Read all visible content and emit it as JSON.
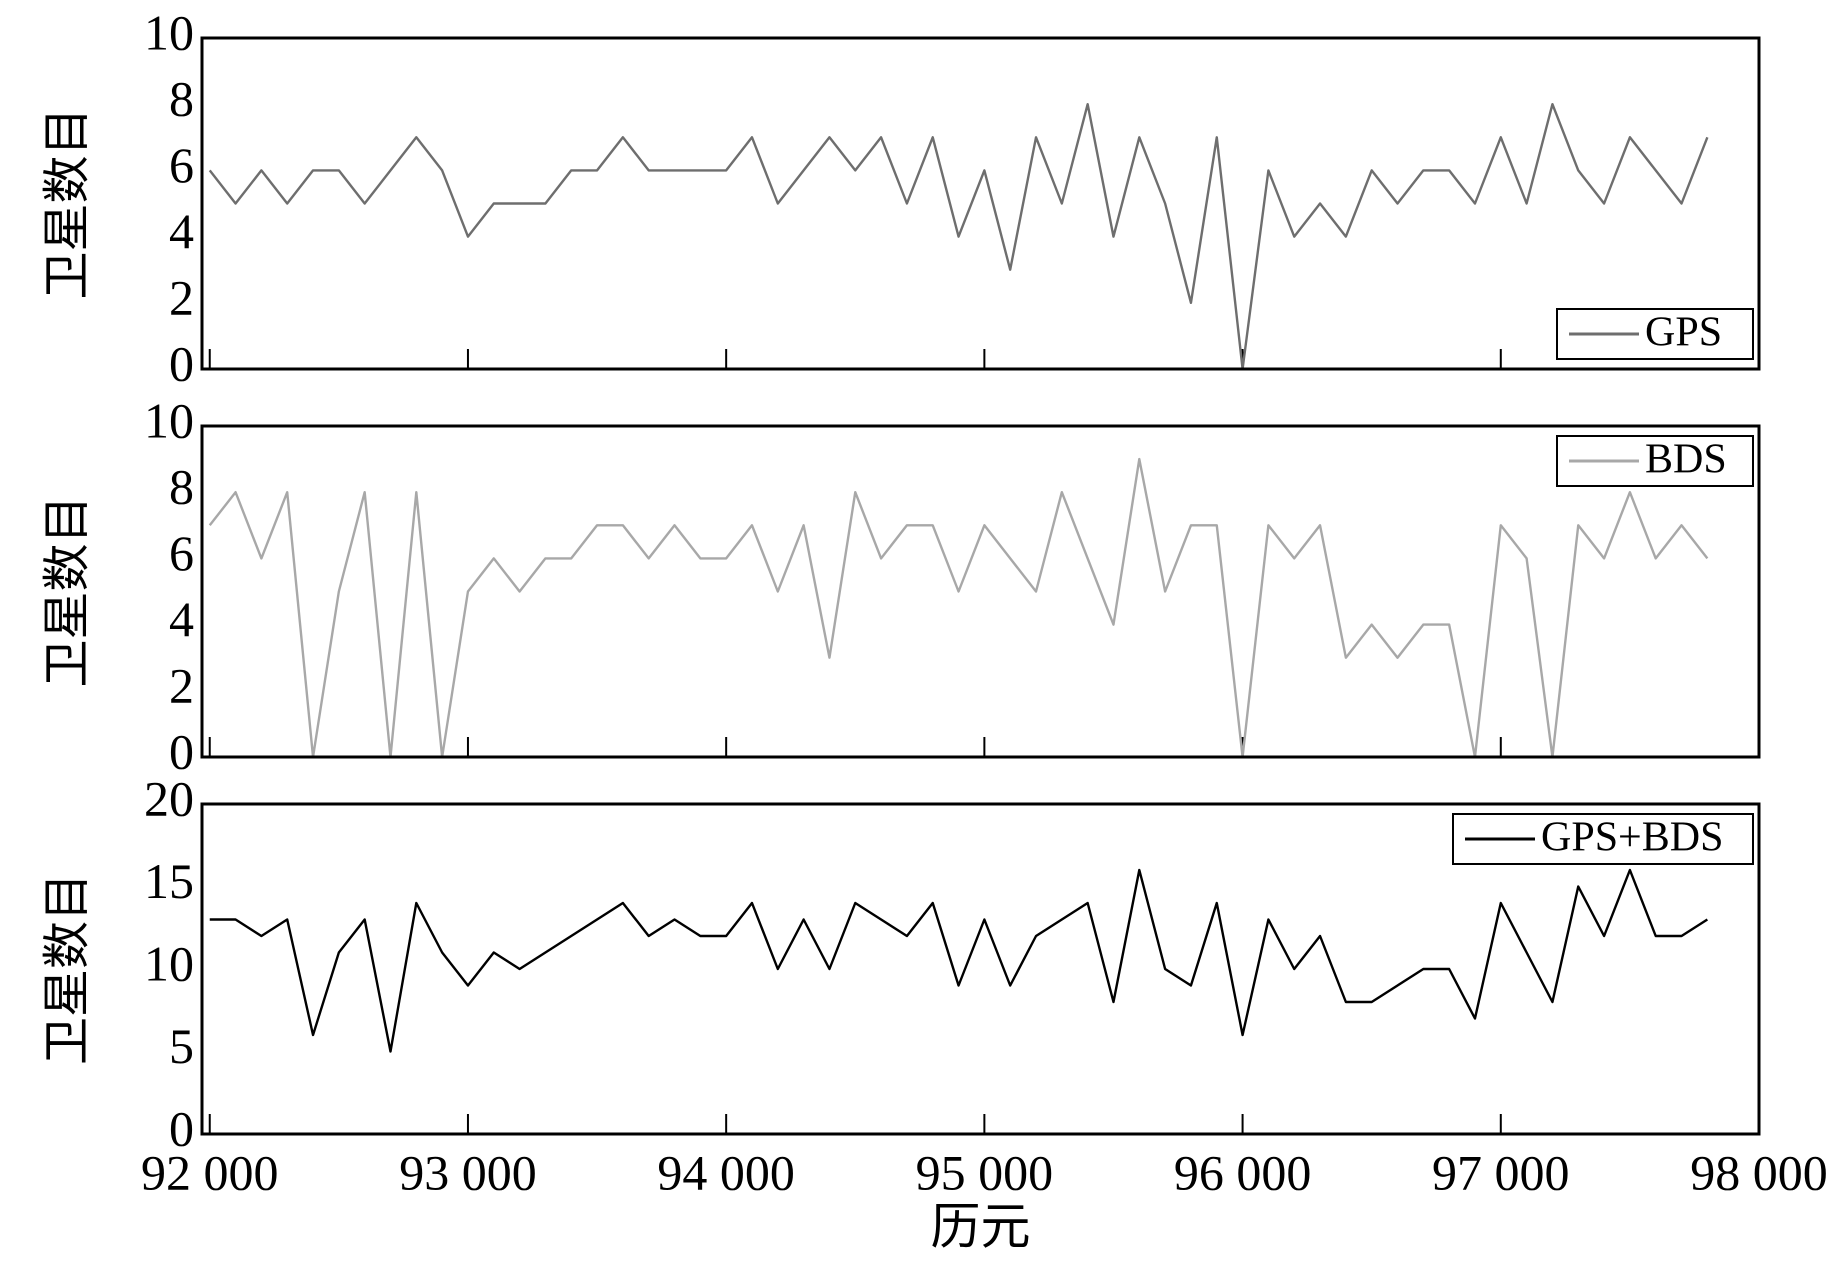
{
  "chart_data": [
    {
      "type": "line",
      "y_label": "卫星数目",
      "legend": "lower right",
      "grid": false,
      "xlim": [
        91970,
        98000
      ],
      "ylim": [
        0,
        10
      ],
      "yticks": [
        0,
        2,
        4,
        6,
        8,
        10
      ],
      "x": [
        92000,
        92100,
        92200,
        92300,
        92400,
        92500,
        92600,
        92700,
        92800,
        92900,
        93000,
        93100,
        93200,
        93300,
        93400,
        93500,
        93600,
        93700,
        93800,
        93900,
        94000,
        94100,
        94200,
        94300,
        94400,
        94500,
        94600,
        94700,
        94800,
        94900,
        95000,
        95100,
        95200,
        95300,
        95400,
        95500,
        95600,
        95700,
        95800,
        95900,
        96000,
        96100,
        96200,
        96300,
        96400,
        96500,
        96600,
        96700,
        96800,
        96900,
        97000,
        97100,
        97200,
        97300,
        97400,
        97500,
        97600,
        97700,
        97800
      ],
      "series": [
        {
          "name": "GPS",
          "color": "#6e6e6e",
          "values": [
            6,
            5,
            6,
            5,
            6,
            6,
            5,
            6,
            7,
            6,
            4,
            5,
            5,
            5,
            6,
            6,
            7,
            6,
            6,
            6,
            6,
            7,
            5,
            6,
            7,
            6,
            7,
            5,
            7,
            4,
            6,
            3,
            7,
            5,
            8,
            4,
            7,
            5,
            2,
            7,
            0,
            6,
            4,
            5,
            4,
            6,
            5,
            6,
            6,
            5,
            7,
            5,
            8,
            6,
            5,
            7,
            6,
            5,
            7
          ]
        }
      ]
    },
    {
      "type": "line",
      "y_label": "卫星数目",
      "legend": "upper right",
      "grid": false,
      "xlim": [
        91970,
        98000
      ],
      "ylim": [
        0,
        10
      ],
      "yticks": [
        0,
        2,
        4,
        6,
        8,
        10
      ],
      "x": [
        92000,
        92100,
        92200,
        92300,
        92400,
        92500,
        92600,
        92700,
        92800,
        92900,
        93000,
        93100,
        93200,
        93300,
        93400,
        93500,
        93600,
        93700,
        93800,
        93900,
        94000,
        94100,
        94200,
        94300,
        94400,
        94500,
        94600,
        94700,
        94800,
        94900,
        95000,
        95100,
        95200,
        95300,
        95400,
        95500,
        95600,
        95700,
        95800,
        95900,
        96000,
        96100,
        96200,
        96300,
        96400,
        96500,
        96600,
        96700,
        96800,
        96900,
        97000,
        97100,
        97200,
        97300,
        97400,
        97500,
        97600,
        97700,
        97800
      ],
      "series": [
        {
          "name": "BDS",
          "color": "#a8a8a8",
          "values": [
            7,
            8,
            6,
            8,
            0,
            5,
            8,
            0,
            8,
            0,
            5,
            6,
            5,
            6,
            6,
            7,
            7,
            6,
            7,
            6,
            6,
            7,
            5,
            7,
            3,
            8,
            6,
            7,
            7,
            5,
            7,
            6,
            5,
            8,
            6,
            4,
            9,
            5,
            7,
            7,
            0,
            7,
            6,
            7,
            3,
            4,
            3,
            4,
            4,
            0,
            7,
            6,
            0,
            7,
            6,
            8,
            6,
            7,
            6
          ]
        }
      ]
    },
    {
      "type": "line",
      "y_label": "卫星数目",
      "x_label": "历元",
      "legend": "upper right",
      "grid": false,
      "xlim": [
        91970,
        98000
      ],
      "ylim": [
        0,
        20
      ],
      "yticks": [
        0,
        5,
        10,
        15,
        20
      ],
      "xticks": [
        {
          "value": 92000,
          "label": "92 000"
        },
        {
          "value": 93000,
          "label": "93 000"
        },
        {
          "value": 94000,
          "label": "94 000"
        },
        {
          "value": 95000,
          "label": "95 000"
        },
        {
          "value": 96000,
          "label": "96 000"
        },
        {
          "value": 97000,
          "label": "97 000"
        },
        {
          "value": 98000,
          "label": "98 000"
        }
      ],
      "x": [
        92000,
        92100,
        92200,
        92300,
        92400,
        92500,
        92600,
        92700,
        92800,
        92900,
        93000,
        93100,
        93200,
        93300,
        93400,
        93500,
        93600,
        93700,
        93800,
        93900,
        94000,
        94100,
        94200,
        94300,
        94400,
        94500,
        94600,
        94700,
        94800,
        94900,
        95000,
        95100,
        95200,
        95300,
        95400,
        95500,
        95600,
        95700,
        95800,
        95900,
        96000,
        96100,
        96200,
        96300,
        96400,
        96500,
        96600,
        96700,
        96800,
        96900,
        97000,
        97100,
        97200,
        97300,
        97400,
        97500,
        97600,
        97700,
        97800
      ],
      "series": [
        {
          "name": "GPS+BDS",
          "color": "#000000",
          "values": [
            13,
            13,
            12,
            13,
            6,
            11,
            13,
            5,
            14,
            11,
            9,
            11,
            10,
            11,
            12,
            13,
            14,
            12,
            13,
            12,
            12,
            14,
            10,
            13,
            10,
            14,
            13,
            12,
            14,
            9,
            13,
            9,
            12,
            13,
            14,
            8,
            16,
            10,
            9,
            14,
            6,
            13,
            10,
            12,
            8,
            8,
            9,
            10,
            10,
            7,
            14,
            11,
            8,
            15,
            12,
            16,
            12,
            12,
            13
          ]
        }
      ]
    }
  ]
}
